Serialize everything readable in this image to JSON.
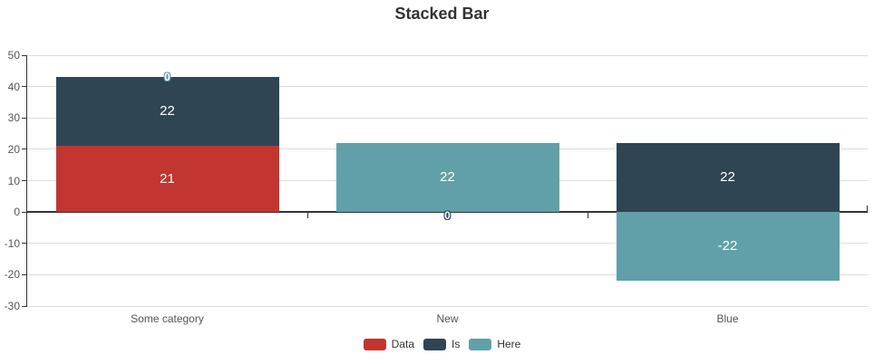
{
  "chart_data": {
    "type": "bar",
    "stacked": true,
    "title": "Stacked Bar",
    "categories": [
      "Some category",
      "New",
      "Blue"
    ],
    "series": [
      {
        "name": "Data",
        "color": "#c23531",
        "values": [
          21,
          0,
          0
        ]
      },
      {
        "name": "Is",
        "color": "#2f4554",
        "values": [
          22,
          0,
          22
        ]
      },
      {
        "name": "Here",
        "color": "#61a0a8",
        "values": [
          0,
          22,
          -22
        ]
      }
    ],
    "ylim": [
      -30,
      50
    ],
    "y_ticks": [
      50,
      40,
      30,
      20,
      10,
      0,
      -10,
      -20,
      -30
    ],
    "grid": true,
    "legend_position": "bottom",
    "value_label_color": "#ffffff",
    "annotations": [
      {
        "text": "0",
        "category_index": 0,
        "y": 43,
        "stroke": "#61a0a8"
      },
      {
        "text": "0",
        "category_index": 1,
        "y": 0,
        "stroke": "#2f4554"
      }
    ]
  },
  "colors": {
    "axis": "#333333",
    "gridline": "#dddddd",
    "background": "#ffffff"
  }
}
